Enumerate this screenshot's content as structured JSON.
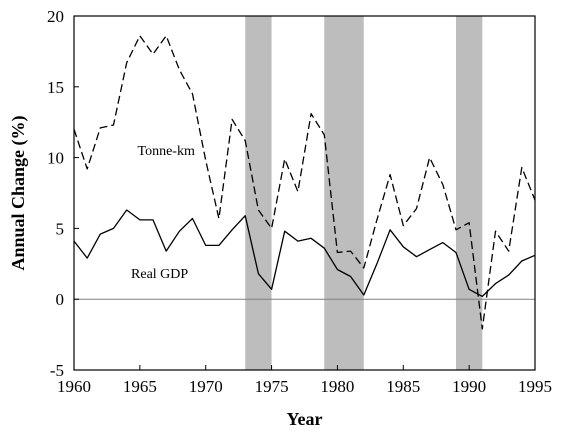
{
  "chart_data": {
    "type": "line",
    "xlabel": "Year",
    "ylabel": "Annual Change (%)",
    "xlim": [
      1960,
      1995
    ],
    "ylim": [
      -5,
      20
    ],
    "xticks": [
      "1960",
      "1965",
      "1970",
      "1975",
      "1980",
      "1985",
      "1990",
      "1995"
    ],
    "yticks": [
      "-5",
      "0",
      "5",
      "10",
      "15",
      "20"
    ],
    "zero_line": true,
    "grid": false,
    "recession_bands": [
      [
        1973,
        1975
      ],
      [
        1979,
        1982
      ],
      [
        1989,
        1991
      ]
    ],
    "band_color": "#bdbdbd",
    "series": [
      {
        "name": "Tonne-km",
        "style": "dashed",
        "color": "#000000",
        "x": [
          1960,
          1961,
          1962,
          1963,
          1964,
          1965,
          1966,
          1967,
          1968,
          1969,
          1970,
          1971,
          1972,
          1973,
          1974,
          1975,
          1976,
          1977,
          1978,
          1979,
          1980,
          1981,
          1982,
          1983,
          1984,
          1985,
          1986,
          1987,
          1988,
          1989,
          1990,
          1991,
          1992,
          1993,
          1994,
          1995
        ],
        "values": [
          12.0,
          9.2,
          12.1,
          12.3,
          16.7,
          18.6,
          17.3,
          18.6,
          16.2,
          14.5,
          9.8,
          5.7,
          12.7,
          11.2,
          6.3,
          5.0,
          9.9,
          7.6,
          13.1,
          11.6,
          3.3,
          3.4,
          2.2,
          5.6,
          8.8,
          5.2,
          6.4,
          10.0,
          8.1,
          4.9,
          5.4,
          -2.1,
          4.8,
          3.4,
          9.3,
          7.0
        ]
      },
      {
        "name": "Real GDP",
        "style": "solid",
        "color": "#000000",
        "x": [
          1960,
          1961,
          1962,
          1963,
          1964,
          1965,
          1966,
          1967,
          1968,
          1969,
          1970,
          1971,
          1972,
          1973,
          1974,
          1975,
          1976,
          1977,
          1978,
          1979,
          1980,
          1981,
          1982,
          1983,
          1984,
          1985,
          1986,
          1987,
          1988,
          1989,
          1990,
          1991,
          1992,
          1993,
          1994,
          1995
        ],
        "values": [
          4.1,
          2.9,
          4.6,
          5.0,
          6.3,
          5.6,
          5.6,
          3.4,
          4.8,
          5.7,
          3.8,
          3.8,
          4.9,
          5.9,
          1.8,
          0.7,
          4.8,
          4.1,
          4.3,
          3.6,
          2.1,
          1.6,
          0.3,
          2.5,
          4.9,
          3.7,
          3.0,
          3.5,
          4.0,
          3.3,
          0.7,
          0.2,
          1.1,
          1.7,
          2.7,
          3.1
        ]
      }
    ]
  }
}
